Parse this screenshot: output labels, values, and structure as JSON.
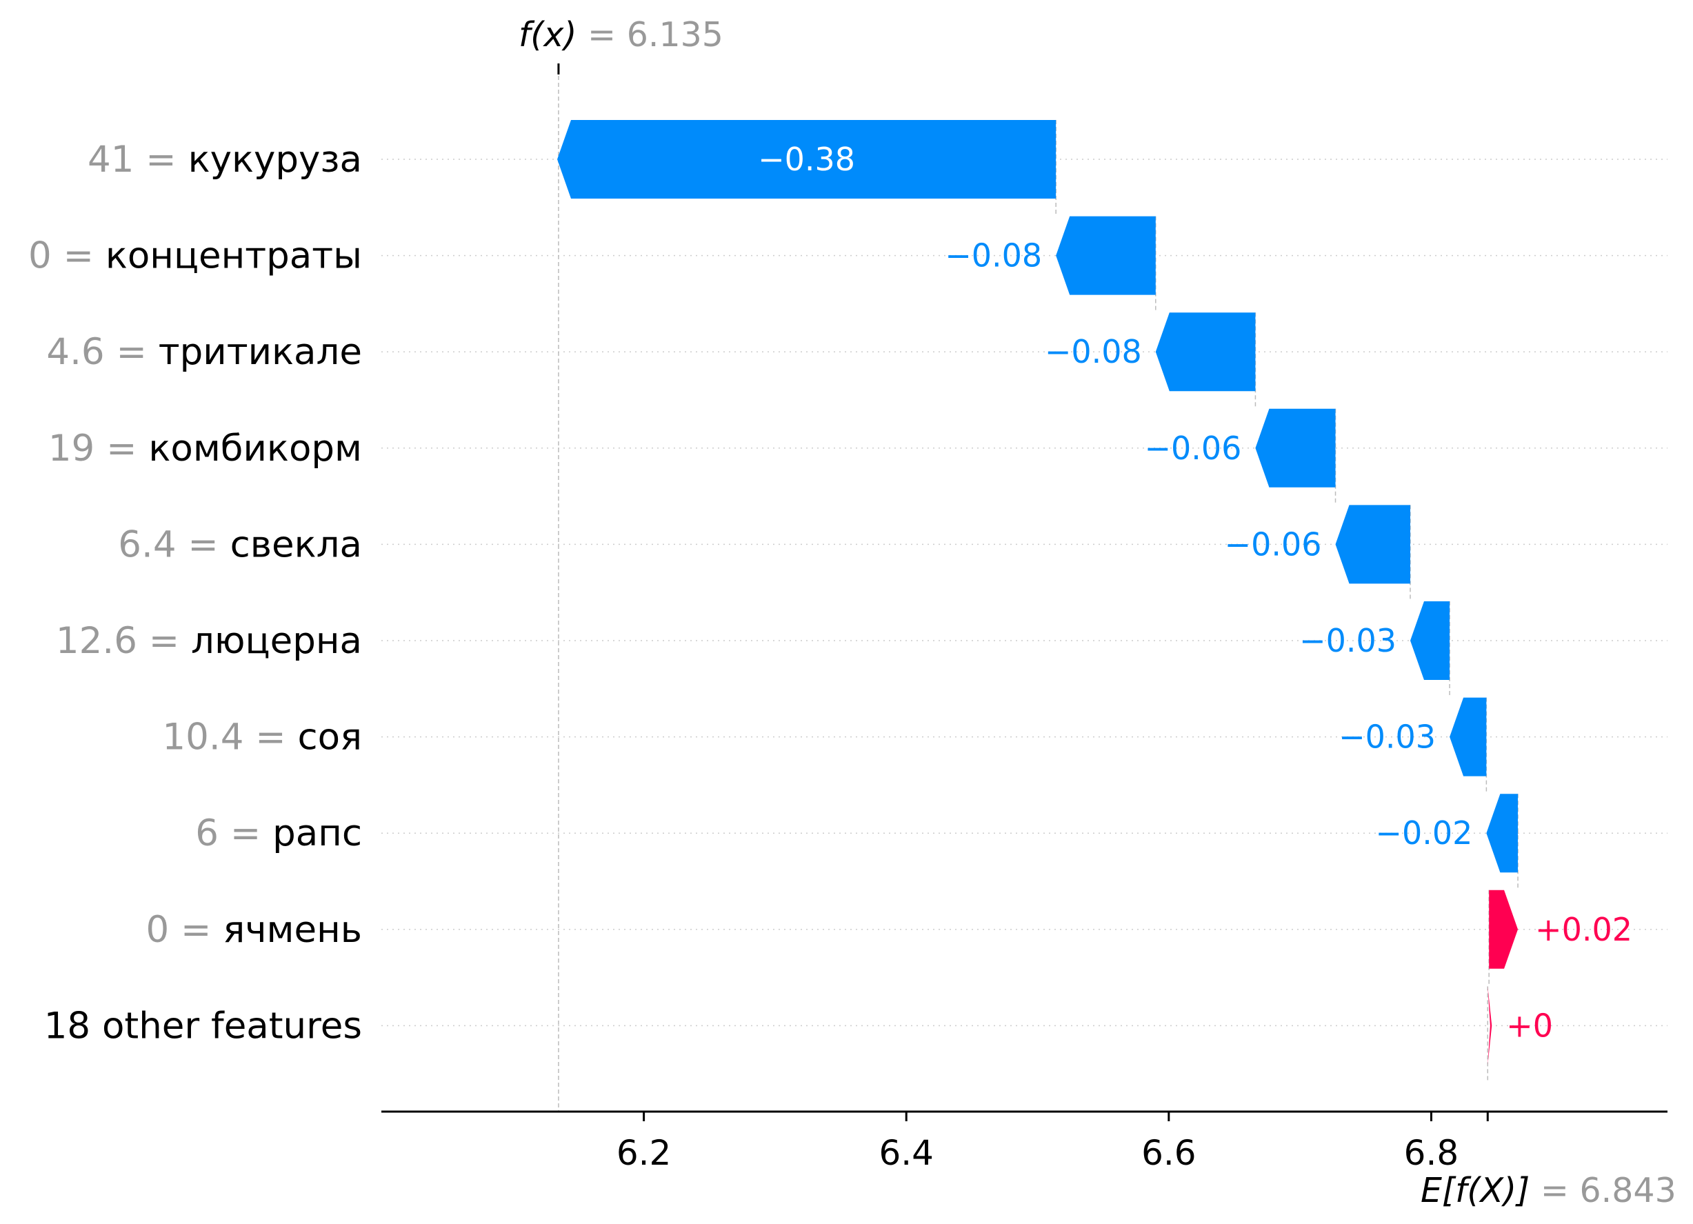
{
  "colors": {
    "negative": "#008bfb",
    "positive": "#ff0051",
    "gray": "#999999",
    "text": "#000000"
  },
  "chart_data": {
    "type": "waterfall",
    "base_value": 6.843,
    "final_value": 6.135,
    "fx_label": {
      "prefix": "f(x)",
      "equals": " = ",
      "value": "6.135"
    },
    "efx_label": {
      "prefix": "E[f(X)]",
      "equals": " = ",
      "value": "6.843"
    },
    "xlim": [
      6.0,
      6.98
    ],
    "xticks": [
      6.2,
      6.4,
      6.6,
      6.8
    ],
    "tick_labels": [
      "6.2",
      "6.4",
      "6.6",
      "6.8"
    ],
    "rows": [
      {
        "value_text": "41",
        "feature": "кукуруза",
        "shap": -0.38,
        "label": "−0.38"
      },
      {
        "value_text": "0",
        "feature": "концентраты",
        "shap": -0.076,
        "label": "−0.08"
      },
      {
        "value_text": "4.6",
        "feature": "тритикале",
        "shap": -0.076,
        "label": "−0.08"
      },
      {
        "value_text": "19",
        "feature": "комбикорм",
        "shap": -0.061,
        "label": "−0.06"
      },
      {
        "value_text": "6.4",
        "feature": "свекла",
        "shap": -0.057,
        "label": "−0.06"
      },
      {
        "value_text": "12.6",
        "feature": "люцерна",
        "shap": -0.03,
        "label": "−0.03"
      },
      {
        "value_text": "10.4",
        "feature": "соя",
        "shap": -0.028,
        "label": "−0.03"
      },
      {
        "value_text": "6",
        "feature": "рапс",
        "shap": -0.024,
        "label": "−0.02"
      },
      {
        "value_text": "0",
        "feature": "ячмень",
        "shap": 0.022,
        "label": "+0.02"
      },
      {
        "value_text": "",
        "feature": "18 other features",
        "shap": 0.001,
        "label": "+0"
      }
    ]
  }
}
